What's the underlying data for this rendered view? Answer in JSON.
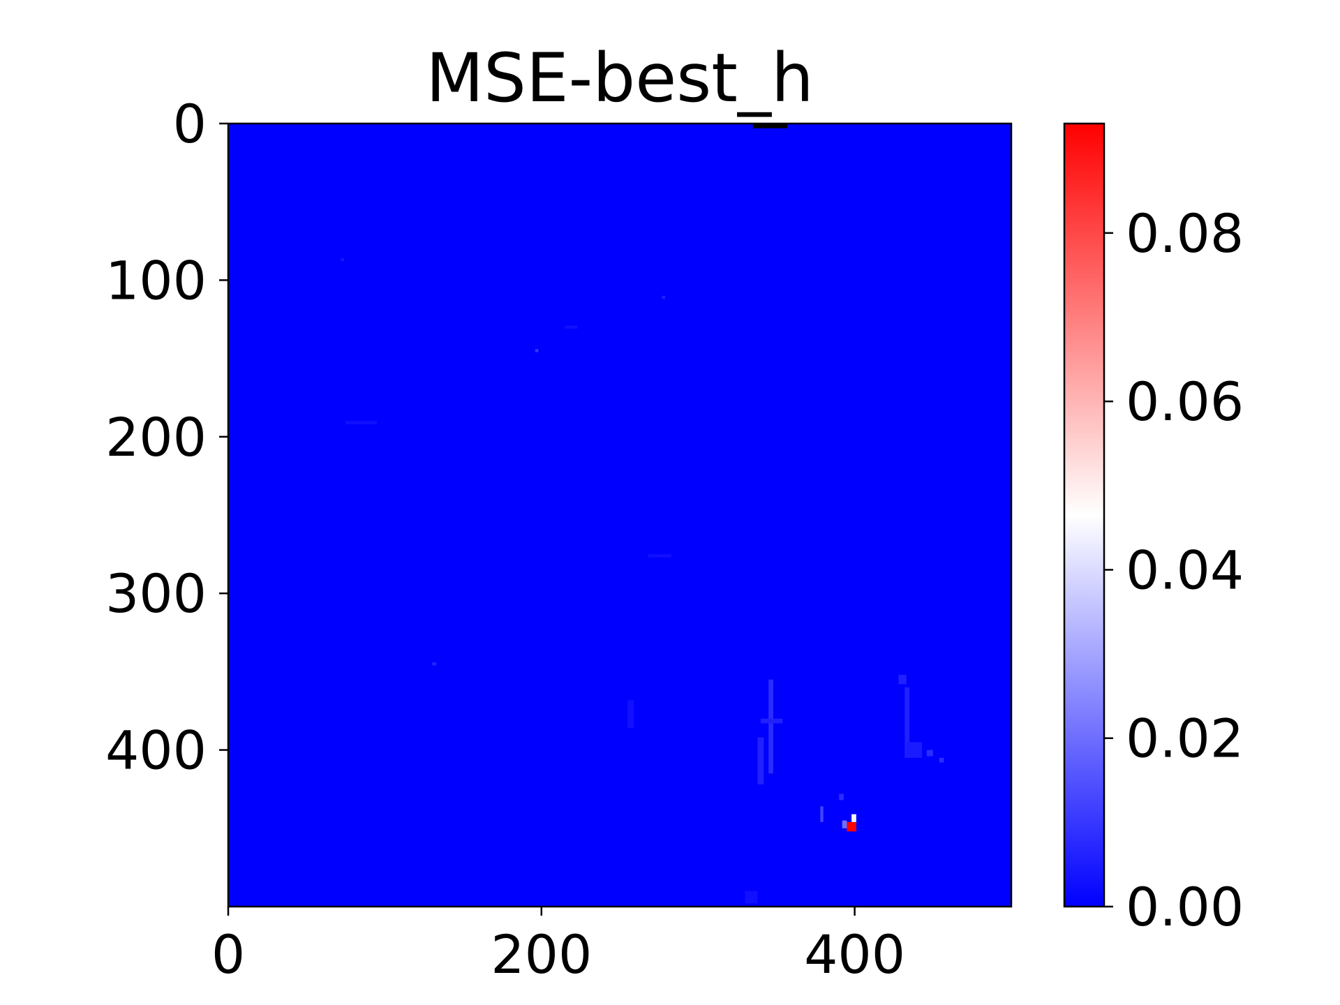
{
  "chart_data": {
    "type": "heatmap",
    "title": "MSE-best_h",
    "xlabel": "",
    "ylabel": "",
    "xlim": [
      0,
      500
    ],
    "ylim": [
      500,
      0
    ],
    "x_ticks": [
      0,
      200,
      400
    ],
    "y_ticks": [
      0,
      100,
      200,
      300,
      400
    ],
    "x_tick_labels": [
      "0",
      "200",
      "400"
    ],
    "y_tick_labels": [
      "0",
      "100",
      "200",
      "300",
      "400"
    ],
    "grid": false,
    "colormap": "bwr",
    "colormap_stops": [
      "#0000ff",
      "#ffffff",
      "#ff0000"
    ],
    "background_value": 0.0,
    "colorbar": {
      "min": 0.0,
      "max": 0.093,
      "ticks": [
        0.0,
        0.02,
        0.04,
        0.06,
        0.08
      ],
      "tick_labels": [
        "0.00",
        "0.02",
        "0.04",
        "0.06",
        "0.08"
      ]
    },
    "hotspots": [
      {
        "x": 395,
        "y": 446,
        "w": 6,
        "h": 6,
        "value": 0.093
      },
      {
        "x": 398,
        "y": 441,
        "w": 3,
        "h": 5,
        "value": 0.045
      },
      {
        "x": 392,
        "y": 445,
        "w": 3,
        "h": 5,
        "value": 0.02
      },
      {
        "x": 378,
        "y": 436,
        "w": 2,
        "h": 10,
        "value": 0.012
      },
      {
        "x": 390,
        "y": 428,
        "w": 3,
        "h": 4,
        "value": 0.008
      },
      {
        "x": 335,
        "y": 0,
        "w": 22,
        "h": 3,
        "value": 0.0
      },
      {
        "x": 345,
        "y": 355,
        "w": 3,
        "h": 60,
        "value": 0.008
      },
      {
        "x": 340,
        "y": 380,
        "w": 14,
        "h": 3,
        "value": 0.006
      },
      {
        "x": 338,
        "y": 392,
        "w": 4,
        "h": 30,
        "value": 0.006
      },
      {
        "x": 428,
        "y": 352,
        "w": 5,
        "h": 6,
        "value": 0.006
      },
      {
        "x": 432,
        "y": 360,
        "w": 3,
        "h": 45,
        "value": 0.006
      },
      {
        "x": 433,
        "y": 395,
        "w": 10,
        "h": 10,
        "value": 0.005
      },
      {
        "x": 446,
        "y": 400,
        "w": 4,
        "h": 4,
        "value": 0.008
      },
      {
        "x": 454,
        "y": 405,
        "w": 3,
        "h": 3,
        "value": 0.008
      },
      {
        "x": 196,
        "y": 144,
        "w": 2,
        "h": 2,
        "value": 0.01
      },
      {
        "x": 277,
        "y": 110,
        "w": 2,
        "h": 2,
        "value": 0.006
      },
      {
        "x": 130,
        "y": 344,
        "w": 3,
        "h": 2,
        "value": 0.006
      },
      {
        "x": 72,
        "y": 86,
        "w": 2,
        "h": 2,
        "value": 0.004
      },
      {
        "x": 75,
        "y": 190,
        "w": 20,
        "h": 2,
        "value": 0.003
      },
      {
        "x": 215,
        "y": 129,
        "w": 8,
        "h": 2,
        "value": 0.003
      },
      {
        "x": 268,
        "y": 275,
        "w": 15,
        "h": 2,
        "value": 0.003
      },
      {
        "x": 255,
        "y": 368,
        "w": 4,
        "h": 18,
        "value": 0.003
      },
      {
        "x": 330,
        "y": 490,
        "w": 8,
        "h": 8,
        "value": 0.003
      }
    ]
  }
}
